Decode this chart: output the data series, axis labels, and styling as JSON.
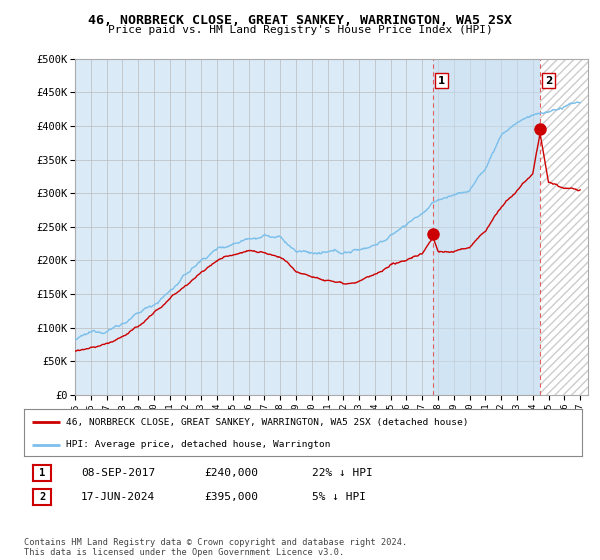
{
  "title": "46, NORBRECK CLOSE, GREAT SANKEY, WARRINGTON, WA5 2SX",
  "subtitle": "Price paid vs. HM Land Registry's House Price Index (HPI)",
  "ylabel_ticks": [
    "£0",
    "£50K",
    "£100K",
    "£150K",
    "£200K",
    "£250K",
    "£300K",
    "£350K",
    "£400K",
    "£450K",
    "£500K"
  ],
  "ytick_values": [
    0,
    50000,
    100000,
    150000,
    200000,
    250000,
    300000,
    350000,
    400000,
    450000,
    500000
  ],
  "xmin_year": 1995.0,
  "xmax_year": 2027.5,
  "ymax": 500000,
  "purchase1_year": 2017.69,
  "purchase1_price": 240000,
  "purchase2_year": 2024.46,
  "purchase2_price": 395000,
  "purchase1_date": "08-SEP-2017",
  "purchase1_pct": "22% ↓ HPI",
  "purchase2_date": "17-JUN-2024",
  "purchase2_pct": "5% ↓ HPI",
  "hpi_color": "#7bbfea",
  "hpi_bg_color": "#daeaf7",
  "sale_color": "#cc0000",
  "vline_color": "#e06060",
  "grid_color": "#bbbbbb",
  "bg_color": "#daeaf7",
  "hatch_color": "#bbbbbb",
  "legend_line1": "46, NORBRECK CLOSE, GREAT SANKEY, WARRINGTON, WA5 2SX (detached house)",
  "legend_line2": "HPI: Average price, detached house, Warrington",
  "footer": "Contains HM Land Registry data © Crown copyright and database right 2024.\nThis data is licensed under the Open Government Licence v3.0.",
  "xtick_years": [
    1995,
    1996,
    1997,
    1998,
    1999,
    2000,
    2001,
    2002,
    2003,
    2004,
    2005,
    2006,
    2007,
    2008,
    2009,
    2010,
    2011,
    2012,
    2013,
    2014,
    2015,
    2016,
    2017,
    2018,
    2019,
    2020,
    2021,
    2022,
    2023,
    2024,
    2025,
    2026,
    2027
  ]
}
